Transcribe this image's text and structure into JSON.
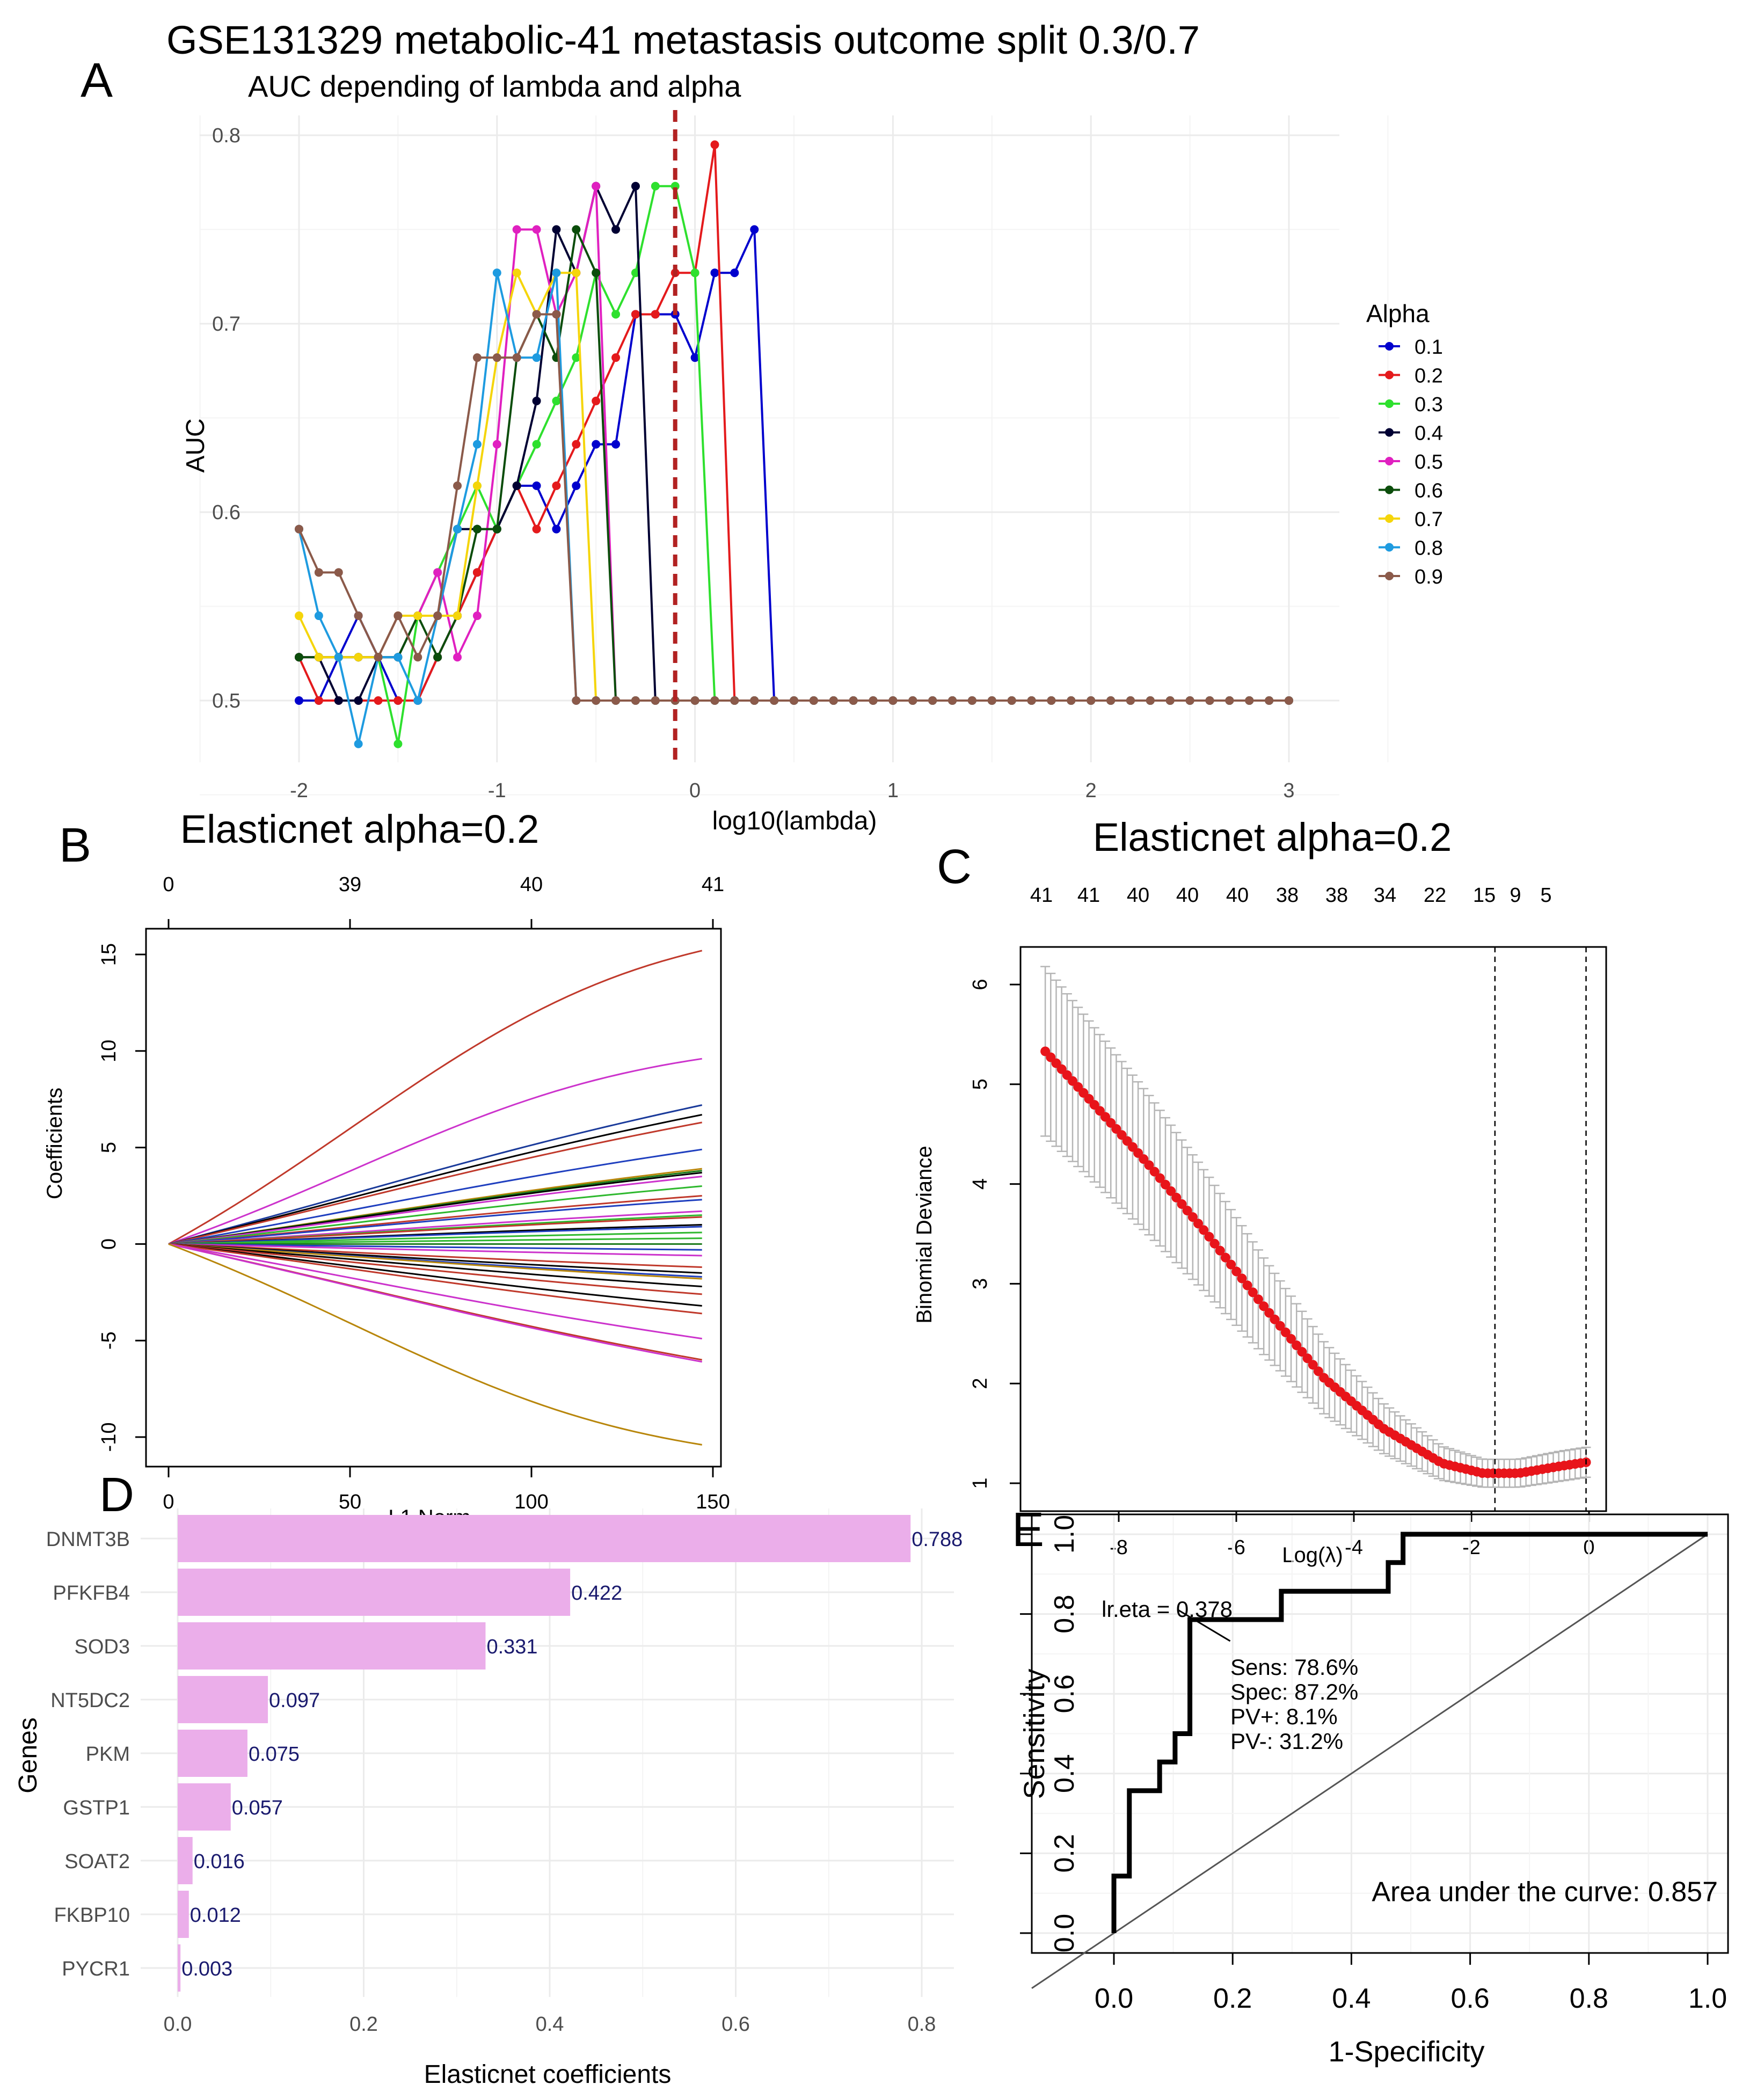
{
  "figure": {
    "main_title": "GSE131329 metabolic-41 metastasis outcome split 0.3/0.7",
    "panel_letters": [
      "A",
      "B",
      "C",
      "D",
      "E"
    ]
  },
  "chart_data": [
    {
      "panel": "A",
      "type": "line",
      "title": "AUC depending of lambda and alpha",
      "xlabel": "log10(lambda)",
      "ylabel": "AUC",
      "xlim": [
        -2,
        3
      ],
      "ylim": [
        0.47,
        0.8
      ],
      "x_ticks": [
        "-2",
        "-1",
        "0",
        "1",
        "2",
        "3"
      ],
      "y_ticks": [
        "0.5",
        "0.6",
        "0.7",
        "0.8"
      ],
      "x_step": 0.1,
      "x_start": -2,
      "grid": true,
      "legend_title": "Alpha",
      "legend_position": "right",
      "vline": {
        "x": -0.1,
        "color": "#b22222",
        "style": "dashed"
      },
      "series": [
        {
          "name": "0.1",
          "color": "#0000cd",
          "values": [
            0.5,
            0.5,
            0.523,
            0.545,
            0.523,
            0.5,
            0.5,
            0.523,
            0.545,
            0.568,
            0.591,
            0.614,
            0.614,
            0.591,
            0.614,
            0.636,
            0.636,
            0.705,
            0.705,
            0.705,
            0.682,
            0.727,
            0.727,
            0.75,
            0.5
          ]
        },
        {
          "name": "0.2",
          "color": "#e41a1c",
          "values": [
            0.523,
            0.5,
            0.5,
            0.5,
            0.5,
            0.5,
            0.5,
            0.523,
            0.545,
            0.568,
            0.591,
            0.614,
            0.591,
            0.614,
            0.636,
            0.659,
            0.682,
            0.705,
            0.705,
            0.727,
            0.727,
            0.795,
            0.5
          ]
        },
        {
          "name": "0.3",
          "color": "#2ee02e",
          "values": [
            0.523,
            0.523,
            0.523,
            0.523,
            0.523,
            0.477,
            0.545,
            0.568,
            0.591,
            0.614,
            0.591,
            0.614,
            0.636,
            0.659,
            0.682,
            0.727,
            0.705,
            0.727,
            0.773,
            0.773,
            0.727,
            0.5
          ]
        },
        {
          "name": "0.4",
          "color": "#000033",
          "values": [
            0.523,
            0.523,
            0.5,
            0.5,
            0.523,
            0.523,
            0.545,
            0.545,
            0.591,
            0.591,
            0.591,
            0.614,
            0.659,
            0.75,
            0.727,
            0.773,
            0.75,
            0.773,
            0.5
          ]
        },
        {
          "name": "0.5",
          "color": "#e020c0",
          "values": [
            0.523,
            0.523,
            0.523,
            0.523,
            0.523,
            0.545,
            0.545,
            0.568,
            0.523,
            0.545,
            0.636,
            0.75,
            0.75,
            0.705,
            0.727,
            0.773,
            0.5
          ]
        },
        {
          "name": "0.6",
          "color": "#0b4d0b",
          "values": [
            0.523,
            0.523,
            0.523,
            0.523,
            0.523,
            0.523,
            0.545,
            0.523,
            0.545,
            0.591,
            0.591,
            0.682,
            0.705,
            0.682,
            0.75,
            0.727,
            0.5
          ]
        },
        {
          "name": "0.7",
          "color": "#f5d50a",
          "values": [
            0.545,
            0.523,
            0.523,
            0.523,
            0.523,
            0.545,
            0.545,
            0.545,
            0.545,
            0.614,
            0.682,
            0.727,
            0.705,
            0.727,
            0.727,
            0.5
          ]
        },
        {
          "name": "0.8",
          "color": "#1e9be0",
          "values": [
            0.591,
            0.545,
            0.523,
            0.477,
            0.523,
            0.523,
            0.5,
            0.545,
            0.591,
            0.636,
            0.727,
            0.682,
            0.682,
            0.727,
            0.5
          ]
        },
        {
          "name": "0.9",
          "color": "#8b5a4a",
          "values": [
            0.591,
            0.568,
            0.568,
            0.545,
            0.523,
            0.545,
            0.523,
            0.545,
            0.614,
            0.682,
            0.682,
            0.682,
            0.705,
            0.705,
            0.5,
            0.5,
            0.5,
            0.5,
            0.5,
            0.5,
            0.5,
            0.5,
            0.5,
            0.5,
            0.5,
            0.5,
            0.5,
            0.5,
            0.5,
            0.5,
            0.5,
            0.5,
            0.5,
            0.5,
            0.5,
            0.5,
            0.5,
            0.5,
            0.5,
            0.5,
            0.5,
            0.5,
            0.5,
            0.5,
            0.5,
            0.5,
            0.5,
            0.5,
            0.5,
            0.5,
            0.5
          ]
        }
      ]
    },
    {
      "panel": "B",
      "type": "line",
      "title": "Elasticnet alpha=0.2",
      "xlabel": "L1 Norm",
      "ylabel": "Coefficients",
      "xlim": [
        0,
        150
      ],
      "ylim": [
        -10,
        15
      ],
      "x_ticks": [
        "0",
        "50",
        "100",
        "150"
      ],
      "y_ticks": [
        "-10",
        "-5",
        "0",
        "5",
        "10",
        "15"
      ],
      "top_ticks": [
        "0",
        "39",
        "40",
        "41"
      ],
      "x_end": 147,
      "series_end_values": [
        15.2,
        9.6,
        7.2,
        6.7,
        6.3,
        4.9,
        3.9,
        3.8,
        3.7,
        3.5,
        3.0,
        2.5,
        2.3,
        1.7,
        1.5,
        1.4,
        1.0,
        0.9,
        0.6,
        0.3,
        0.0,
        -0.3,
        -0.6,
        -1.2,
        -1.5,
        -1.7,
        -1.8,
        -2.2,
        -2.6,
        -3.2,
        -3.6,
        -4.9,
        -6.0,
        -6.1,
        -10.4
      ],
      "series_colors": [
        "#c0392b",
        "#cc33cc",
        "#1a3a9a",
        "#000000",
        "#c0392b",
        "#1f3fbf",
        "#b8860b",
        "#1a7a1a",
        "#000000",
        "#cc33cc",
        "#2eb82e",
        "#c0392b",
        "#1f3fbf",
        "#cc33cc",
        "#2eb82e",
        "#c0392b",
        "#000000",
        "#1f3fbf",
        "#2eb82e",
        "#2eb82e",
        "#1a7a1a",
        "#1f3fbf",
        "#cc33cc",
        "#c0392b",
        "#000000",
        "#1f3fbf",
        "#b8860b",
        "#000000",
        "#c0392b",
        "#000000",
        "#c0392b",
        "#cc33cc",
        "#c0392b",
        "#cc33cc",
        "#b8860b"
      ]
    },
    {
      "panel": "C",
      "type": "scatter",
      "title": "Elasticnet alpha=0.2",
      "xlabel": "Log(λ)",
      "ylabel": "Binomial Deviance",
      "xlim": [
        -9.2,
        0
      ],
      "ylim": [
        1,
        6
      ],
      "x_ticks": [
        "-8",
        "-6",
        "-4",
        "-2",
        "0"
      ],
      "y_ticks": [
        "1",
        "2",
        "3",
        "4",
        "5",
        "6"
      ],
      "top_ticks": [
        "41",
        "41",
        "40",
        "40",
        "40",
        "38",
        "38",
        "34",
        "22",
        "15",
        "9",
        "5"
      ],
      "vlines": [
        -1.6,
        -0.05
      ],
      "x_range_points": [
        -9.25,
        -0.05
      ],
      "curve": [
        {
          "x": -9.25,
          "y": 5.33,
          "se": 0.85
        },
        {
          "x": -8.5,
          "y": 4.85,
          "se": 0.78
        },
        {
          "x": -7.5,
          "y": 4.2,
          "se": 0.7
        },
        {
          "x": -6.5,
          "y": 3.5,
          "se": 0.6
        },
        {
          "x": -5.5,
          "y": 2.75,
          "se": 0.48
        },
        {
          "x": -4.5,
          "y": 2.05,
          "se": 0.36
        },
        {
          "x": -3.5,
          "y": 1.55,
          "se": 0.25
        },
        {
          "x": -2.5,
          "y": 1.2,
          "se": 0.17
        },
        {
          "x": -1.8,
          "y": 1.1,
          "se": 0.14
        },
        {
          "x": -1.2,
          "y": 1.1,
          "se": 0.14
        },
        {
          "x": -0.5,
          "y": 1.17,
          "se": 0.15
        },
        {
          "x": -0.05,
          "y": 1.21,
          "se": 0.15
        }
      ]
    },
    {
      "panel": "D",
      "type": "bar",
      "orientation": "horizontal",
      "xlabel": "Elasticnet coefficients",
      "ylabel": "Genes",
      "xlim": [
        0,
        0.83
      ],
      "x_ticks": [
        "0.0",
        "0.2",
        "0.4",
        "0.6",
        "0.8"
      ],
      "bar_color": "#ebaeea",
      "categories": [
        "DNMT3B",
        "PFKFB4",
        "SOD3",
        "NT5DC2",
        "PKM",
        "GSTP1",
        "SOAT2",
        "FKBP10",
        "PYCR1"
      ],
      "values": [
        0.788,
        0.422,
        0.331,
        0.097,
        0.075,
        0.057,
        0.016,
        0.012,
        0.003
      ],
      "labels": [
        "0.788",
        "0.422",
        "0.331",
        "0.097",
        "0.075",
        "0.057",
        "0.016",
        "0.012",
        "0.003"
      ]
    },
    {
      "panel": "E",
      "type": "line",
      "xlabel": "1-Specificity",
      "ylabel": "Sensitivity",
      "xlim": [
        0,
        1
      ],
      "ylim": [
        0,
        1
      ],
      "x_ticks": [
        "0.0",
        "0.2",
        "0.4",
        "0.6",
        "0.8",
        "1.0"
      ],
      "y_ticks": [
        "0.0",
        "0.2",
        "0.4",
        "0.6",
        "0.8",
        "1.0"
      ],
      "roc_points": [
        [
          0,
          0
        ],
        [
          0,
          0.143
        ],
        [
          0.026,
          0.143
        ],
        [
          0.026,
          0.357
        ],
        [
          0.077,
          0.357
        ],
        [
          0.077,
          0.429
        ],
        [
          0.103,
          0.429
        ],
        [
          0.103,
          0.5
        ],
        [
          0.128,
          0.5
        ],
        [
          0.128,
          0.786
        ],
        [
          0.282,
          0.786
        ],
        [
          0.282,
          0.857
        ],
        [
          0.462,
          0.857
        ],
        [
          0.462,
          0.929
        ],
        [
          0.487,
          0.929
        ],
        [
          0.487,
          1.0
        ],
        [
          1.0,
          1.0
        ]
      ],
      "cutoff_point": [
        0.128,
        0.786
      ],
      "annotation_title": "lr.eta = 0.378",
      "annotation_lines": [
        "Sens: 78.6%",
        "Spec: 87.2%",
        "PV+: 8.1%",
        "PV-: 31.2%"
      ],
      "auc_text": "Area under the curve: 0.857"
    }
  ]
}
